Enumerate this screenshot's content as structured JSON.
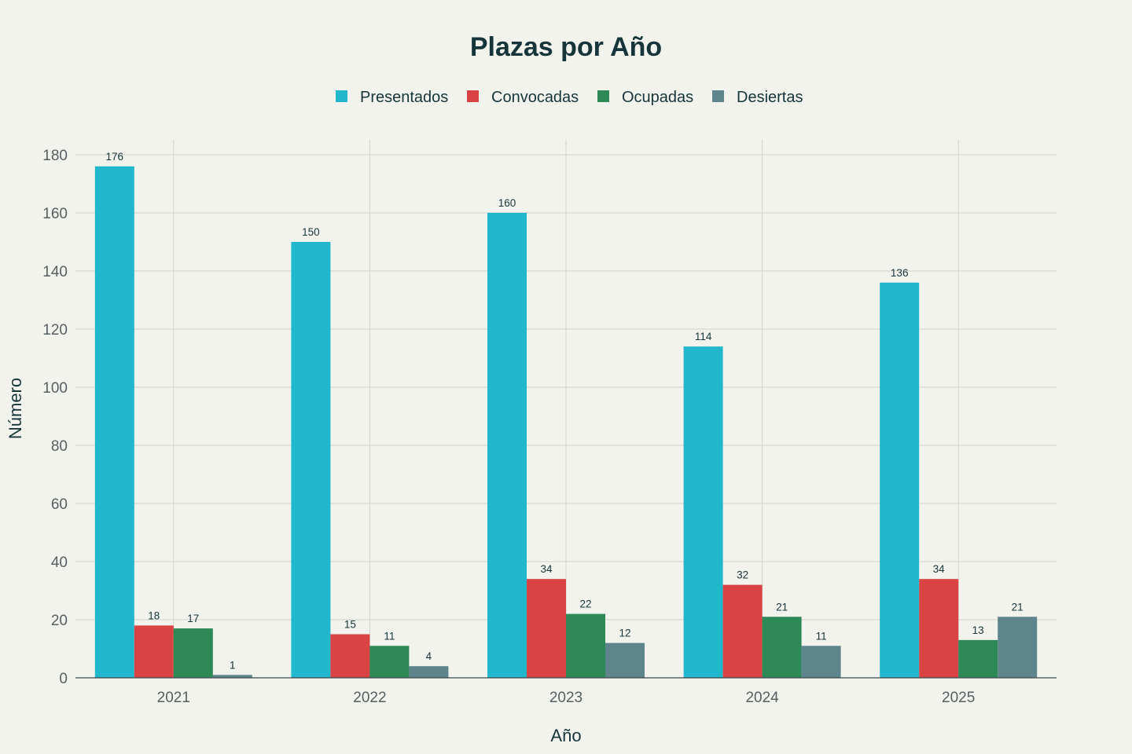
{
  "chart_data": {
    "type": "bar",
    "title": "Plazas por Año",
    "xlabel": "Año",
    "ylabel": "Número",
    "categories": [
      "2021",
      "2022",
      "2023",
      "2024",
      "2025"
    ],
    "series": [
      {
        "name": "Presentados",
        "color": "#21b7cc",
        "values": [
          176,
          150,
          160,
          114,
          136
        ]
      },
      {
        "name": "Convocadas",
        "color": "#d94344",
        "values": [
          18,
          15,
          34,
          32,
          34
        ]
      },
      {
        "name": "Ocupadas",
        "color": "#2d8a57",
        "values": [
          17,
          11,
          22,
          21,
          13
        ]
      },
      {
        "name": "Desiertas",
        "color": "#5e858c",
        "values": [
          1,
          4,
          12,
          11,
          21
        ]
      }
    ],
    "ylim": [
      0,
      180
    ],
    "yticks": [
      0,
      20,
      40,
      60,
      80,
      100,
      120,
      140,
      160,
      180
    ],
    "grid": true,
    "legend_position": "top-center",
    "data_labels": true
  }
}
